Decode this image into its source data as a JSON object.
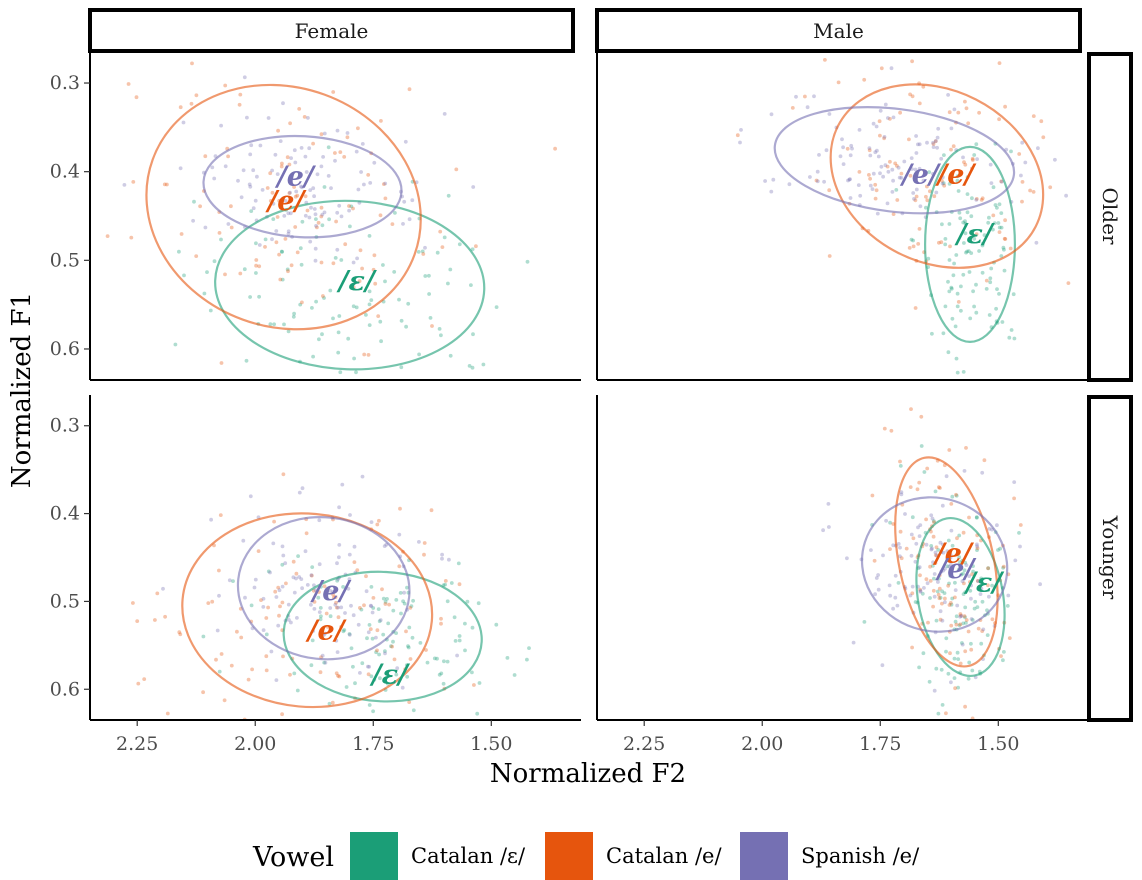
{
  "colors": {
    "catalan_open_e": "#1b9e77",
    "catalan_e": "#e6550d",
    "spanish_e": "#7570b3"
  },
  "chart_data": {
    "type": "scatter",
    "xlabel": "Normalized F2",
    "ylabel": "Normalized F1",
    "x_reversed": true,
    "y_reversed": true,
    "xlim": [
      2.35,
      1.31
    ],
    "ylim": [
      0.265,
      0.635
    ],
    "x_ticks": [
      "2.25",
      "2.00",
      "1.75",
      "1.50"
    ],
    "x_tick_values": [
      2.25,
      2.0,
      1.75,
      1.5
    ],
    "y_ticks": [
      "0.3",
      "0.4",
      "0.5",
      "0.6"
    ],
    "y_tick_values": [
      0.3,
      0.4,
      0.5,
      0.6
    ],
    "col_facets": [
      "Female",
      "Male"
    ],
    "row_facets": [
      "Older",
      "Younger"
    ],
    "legend": {
      "title": "Vowel",
      "position": "bottom",
      "entries": [
        "Catalan /ɛ/",
        "Catalan /e/",
        "Spanish /e/"
      ]
    },
    "series": [
      {
        "name": "Catalan /ɛ/",
        "color_key": "catalan_open_e",
        "label": "/ɛ/"
      },
      {
        "name": "Catalan /e/",
        "color_key": "catalan_e",
        "label": "/e/"
      },
      {
        "name": "Spanish /e/",
        "color_key": "spanish_e",
        "label": "/e/"
      }
    ],
    "panels": [
      {
        "gender": "Female",
        "age": "Older",
        "ellipses": [
          {
            "series": 0,
            "cx": 1.8,
            "cy": 0.528,
            "rx": 0.285,
            "ry": 0.095,
            "angle": 2
          },
          {
            "series": 1,
            "cx": 1.94,
            "cy": 0.44,
            "rx": 0.295,
            "ry": 0.135,
            "angle": 20
          },
          {
            "series": 2,
            "cx": 1.9,
            "cy": 0.417,
            "rx": 0.21,
            "ry": 0.057,
            "angle": 3
          }
        ],
        "labels": [
          {
            "series": 2,
            "x": 1.915,
            "y": 0.407
          },
          {
            "series": 1,
            "x": 1.935,
            "y": 0.435
          },
          {
            "series": 0,
            "x": 1.785,
            "y": 0.525
          }
        ]
      },
      {
        "gender": "Male",
        "age": "Older",
        "ellipses": [
          {
            "series": 0,
            "cx": 1.56,
            "cy": 0.482,
            "rx": 0.095,
            "ry": 0.11,
            "angle": 0
          },
          {
            "series": 1,
            "cx": 1.63,
            "cy": 0.405,
            "rx": 0.235,
            "ry": 0.097,
            "angle": 27
          },
          {
            "series": 2,
            "cx": 1.72,
            "cy": 0.387,
            "rx": 0.255,
            "ry": 0.058,
            "angle": 7
          }
        ],
        "labels": [
          {
            "series": 2,
            "x": 1.665,
            "y": 0.405
          },
          {
            "series": 1,
            "x": 1.59,
            "y": 0.405
          },
          {
            "series": 0,
            "x": 1.55,
            "y": 0.472
          }
        ]
      },
      {
        "gender": "Female",
        "age": "Younger",
        "ellipses": [
          {
            "series": 0,
            "cx": 1.73,
            "cy": 0.54,
            "rx": 0.21,
            "ry": 0.073,
            "angle": 3
          },
          {
            "series": 1,
            "cx": 1.89,
            "cy": 0.51,
            "rx": 0.265,
            "ry": 0.109,
            "angle": 5
          },
          {
            "series": 2,
            "cx": 1.855,
            "cy": 0.485,
            "rx": 0.182,
            "ry": 0.08,
            "angle": 6
          }
        ],
        "labels": [
          {
            "series": 2,
            "x": 1.84,
            "y": 0.49
          },
          {
            "series": 1,
            "x": 1.85,
            "y": 0.535
          },
          {
            "series": 0,
            "x": 1.715,
            "y": 0.585
          }
        ]
      },
      {
        "gender": "Male",
        "age": "Younger",
        "ellipses": [
          {
            "series": 0,
            "cx": 1.58,
            "cy": 0.495,
            "rx": 0.09,
            "ry": 0.09,
            "angle": -10
          },
          {
            "series": 1,
            "cx": 1.61,
            "cy": 0.455,
            "rx": 0.1,
            "ry": 0.12,
            "angle": -12
          },
          {
            "series": 2,
            "cx": 1.635,
            "cy": 0.458,
            "rx": 0.155,
            "ry": 0.075,
            "angle": 18
          }
        ],
        "labels": [
          {
            "series": 1,
            "x": 1.595,
            "y": 0.447
          },
          {
            "series": 2,
            "x": 1.59,
            "y": 0.465
          },
          {
            "series": 0,
            "x": 1.53,
            "y": 0.48
          }
        ]
      }
    ]
  }
}
